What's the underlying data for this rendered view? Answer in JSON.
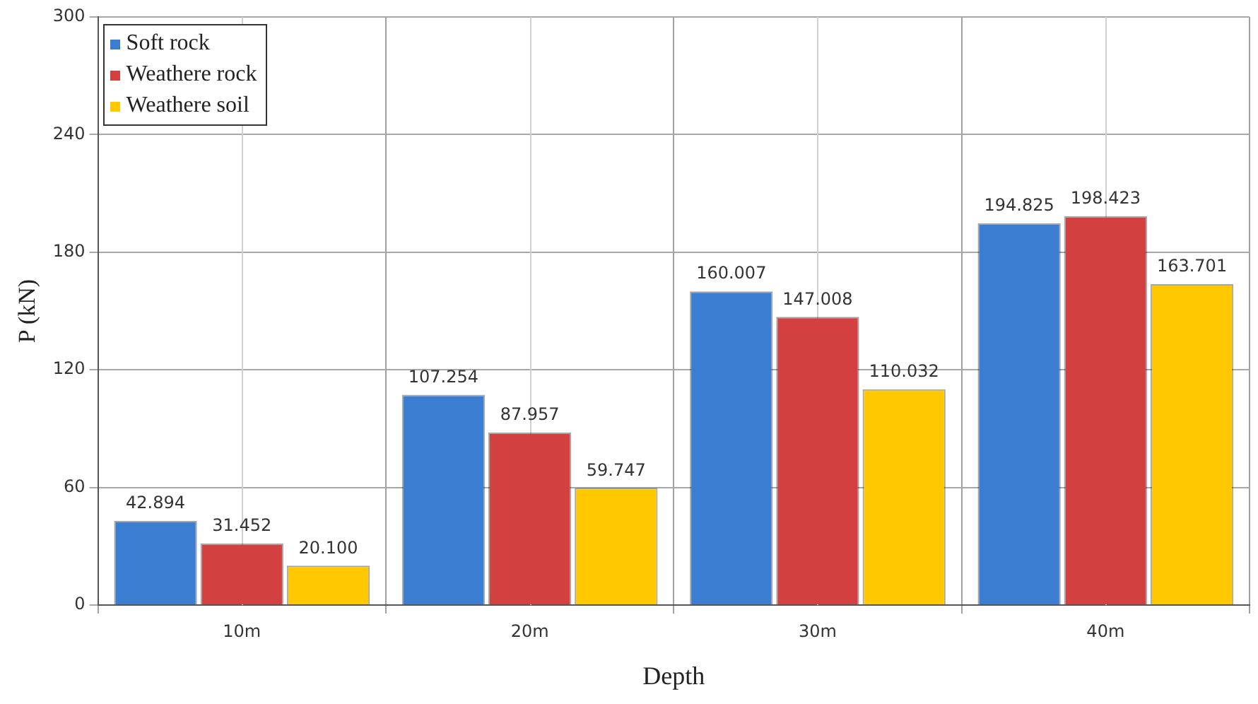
{
  "chart_data": {
    "type": "bar",
    "xlabel": "Depth",
    "ylabel": "P (kN)",
    "categories": [
      "10m",
      "20m",
      "30m",
      "40m"
    ],
    "series": [
      {
        "name": "Soft rock",
        "color": "#3b7dd0",
        "values": [
          42.894,
          107.254,
          160.007,
          194.825
        ]
      },
      {
        "name": "Weathere rock",
        "color": "#d24040",
        "values": [
          31.452,
          87.957,
          147.008,
          198.423
        ]
      },
      {
        "name": "Weathere soil",
        "color": "#ffc800",
        "values": [
          20.1,
          59.747,
          110.032,
          163.701
        ]
      }
    ],
    "value_labels": [
      [
        "42.894",
        "107.254",
        "160.007",
        "194.825"
      ],
      [
        "31.452",
        "87.957",
        "147.008",
        "198.423"
      ],
      [
        "20.100",
        "59.747",
        "110.032",
        "163.701"
      ]
    ],
    "ylim": [
      0,
      300
    ],
    "yticks": [
      0,
      60,
      120,
      180,
      240,
      300
    ],
    "grid": true,
    "legend": "top left"
  }
}
